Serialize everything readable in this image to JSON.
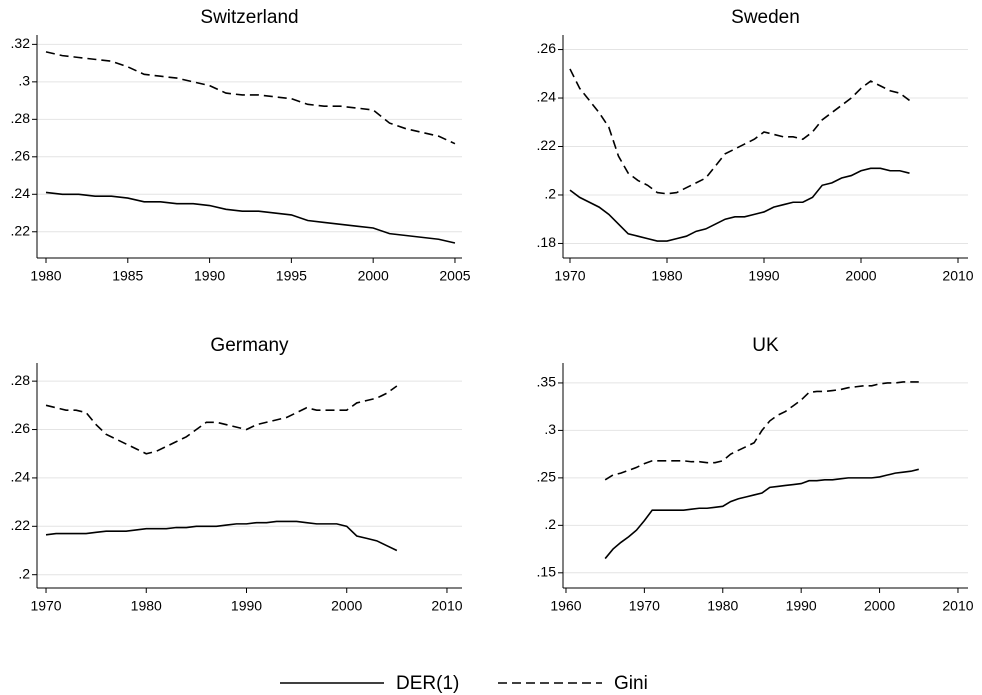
{
  "legend": {
    "entries": [
      {
        "name": "DER(1)",
        "dash": "solid"
      },
      {
        "name": "Gini",
        "dash": "dashed"
      }
    ]
  },
  "chart_data": [
    {
      "type": "line",
      "title": "Switzerland",
      "grid": true,
      "x": [
        1980,
        1981,
        1982,
        1983,
        1984,
        1985,
        1986,
        1987,
        1988,
        1989,
        1990,
        1991,
        1992,
        1993,
        1994,
        1995,
        1996,
        1997,
        1998,
        1999,
        2000,
        2001,
        2002,
        2003,
        2004,
        2005
      ],
      "series": [
        {
          "color": "#000000",
          "dash": "solid",
          "values": [
            0.241,
            0.24,
            0.24,
            0.239,
            0.239,
            0.238,
            0.236,
            0.236,
            0.235,
            0.235,
            0.234,
            0.232,
            0.231,
            0.231,
            0.23,
            0.229,
            0.226,
            0.225,
            0.224,
            0.223,
            0.222,
            0.219,
            0.218,
            0.217,
            0.216,
            0.214
          ]
        },
        {
          "color": "#000000",
          "dash": "dashed",
          "values": [
            0.316,
            0.314,
            0.313,
            0.312,
            0.311,
            0.308,
            0.304,
            0.303,
            0.302,
            0.3,
            0.298,
            0.294,
            0.293,
            0.293,
            0.292,
            0.291,
            0.288,
            0.287,
            0.287,
            0.286,
            0.285,
            0.278,
            0.275,
            0.273,
            0.271,
            0.267
          ]
        }
      ],
      "xlim": [
        1979.45,
        2005.43
      ],
      "xticks": [
        1980,
        1985,
        1990,
        1995,
        2000,
        2005
      ],
      "ylim": [
        0.206,
        0.325
      ],
      "yticks": [
        {
          "value": 0.22,
          "label": ".22"
        },
        {
          "value": 0.24,
          "label": ".24"
        },
        {
          "value": 0.26,
          "label": ".26"
        },
        {
          "value": 0.28,
          "label": ".28"
        },
        {
          "value": 0.3,
          "label": ".3"
        },
        {
          "value": 0.32,
          "label": ".32"
        }
      ]
    },
    {
      "type": "line",
      "title": "Sweden",
      "grid": true,
      "x": [
        1970,
        1971,
        1972,
        1973,
        1974,
        1975,
        1976,
        1977,
        1978,
        1979,
        1980,
        1981,
        1982,
        1983,
        1984,
        1985,
        1986,
        1987,
        1988,
        1989,
        1990,
        1991,
        1992,
        1993,
        1994,
        1995,
        1996,
        1997,
        1998,
        1999,
        2000,
        2001,
        2002,
        2003,
        2004,
        2005
      ],
      "series": [
        {
          "color": "#000000",
          "dash": "solid",
          "values": [
            0.202,
            0.199,
            0.197,
            0.195,
            0.192,
            0.188,
            0.184,
            0.183,
            0.182,
            0.181,
            0.181,
            0.182,
            0.183,
            0.185,
            0.186,
            0.188,
            0.19,
            0.191,
            0.191,
            0.192,
            0.193,
            0.195,
            0.196,
            0.197,
            0.197,
            0.199,
            0.204,
            0.205,
            0.207,
            0.208,
            0.21,
            0.211,
            0.211,
            0.21,
            0.21,
            0.209
          ]
        },
        {
          "color": "#000000",
          "dash": "dashed",
          "values": [
            0.252,
            0.244,
            0.239,
            0.234,
            0.228,
            0.216,
            0.209,
            0.206,
            0.204,
            0.201,
            0.2005,
            0.201,
            0.203,
            0.205,
            0.207,
            0.212,
            0.217,
            0.219,
            0.221,
            0.223,
            0.226,
            0.225,
            0.224,
            0.224,
            0.223,
            0.226,
            0.231,
            0.234,
            0.237,
            0.24,
            0.244,
            0.247,
            0.245,
            0.243,
            0.242,
            0.239
          ]
        }
      ],
      "xlim": [
        1969.28,
        2011.03
      ],
      "xticks": [
        1970,
        1980,
        1990,
        2000,
        2010
      ],
      "ylim": [
        0.174,
        0.266
      ],
      "yticks": [
        {
          "value": 0.18,
          "label": ".18"
        },
        {
          "value": 0.2,
          "label": ".2"
        },
        {
          "value": 0.22,
          "label": ".22"
        },
        {
          "value": 0.24,
          "label": ".24"
        },
        {
          "value": 0.26,
          "label": ".26"
        }
      ]
    },
    {
      "type": "line",
      "title": "Germany",
      "grid": true,
      "x": [
        1970,
        1971,
        1972,
        1973,
        1974,
        1975,
        1976,
        1977,
        1978,
        1979,
        1980,
        1981,
        1982,
        1983,
        1984,
        1985,
        1986,
        1987,
        1988,
        1989,
        1990,
        1991,
        1992,
        1993,
        1994,
        1995,
        1996,
        1997,
        1998,
        1999,
        2000,
        2001,
        2002,
        2003,
        2004,
        2005
      ],
      "series": [
        {
          "color": "#000000",
          "dash": "solid",
          "values": [
            0.2165,
            0.217,
            0.217,
            0.217,
            0.217,
            0.2175,
            0.218,
            0.218,
            0.218,
            0.2185,
            0.219,
            0.219,
            0.219,
            0.2195,
            0.2195,
            0.22,
            0.22,
            0.22,
            0.2205,
            0.221,
            0.221,
            0.2215,
            0.2215,
            0.222,
            0.222,
            0.222,
            0.2215,
            0.221,
            0.221,
            0.221,
            0.22,
            0.216,
            0.215,
            0.214,
            0.212,
            0.21
          ]
        },
        {
          "color": "#000000",
          "dash": "dashed",
          "values": [
            0.27,
            0.269,
            0.268,
            0.268,
            0.267,
            0.262,
            0.258,
            0.256,
            0.254,
            0.252,
            0.25,
            0.251,
            0.253,
            0.255,
            0.257,
            0.26,
            0.263,
            0.263,
            0.262,
            0.261,
            0.26,
            0.262,
            0.263,
            0.264,
            0.265,
            0.267,
            0.269,
            0.268,
            0.268,
            0.268,
            0.268,
            0.271,
            0.272,
            0.273,
            0.275,
            0.278
          ]
        }
      ],
      "xlim": [
        1969.1,
        2011.5
      ],
      "xticks": [
        1970,
        1980,
        1990,
        2000,
        2010
      ],
      "ylim": [
        0.1945,
        0.2875
      ],
      "yticks": [
        {
          "value": 0.2,
          "label": ".2"
        },
        {
          "value": 0.22,
          "label": ".22"
        },
        {
          "value": 0.24,
          "label": ".24"
        },
        {
          "value": 0.26,
          "label": ".26"
        },
        {
          "value": 0.28,
          "label": ".28"
        }
      ]
    },
    {
      "type": "line",
      "title": "UK",
      "grid": true,
      "x": [
        1965,
        1966,
        1967,
        1968,
        1969,
        1970,
        1971,
        1972,
        1973,
        1974,
        1975,
        1976,
        1977,
        1978,
        1979,
        1980,
        1981,
        1982,
        1983,
        1984,
        1985,
        1986,
        1987,
        1988,
        1989,
        1990,
        1991,
        1992,
        1993,
        1994,
        1995,
        1996,
        1997,
        1998,
        1999,
        2000,
        2001,
        2002,
        2003,
        2004,
        2005
      ],
      "series": [
        {
          "color": "#000000",
          "dash": "solid",
          "values": [
            0.165,
            0.175,
            0.182,
            0.188,
            0.195,
            0.205,
            0.216,
            0.216,
            0.216,
            0.216,
            0.216,
            0.217,
            0.218,
            0.218,
            0.219,
            0.22,
            0.225,
            0.228,
            0.23,
            0.232,
            0.234,
            0.24,
            0.241,
            0.242,
            0.243,
            0.244,
            0.247,
            0.247,
            0.248,
            0.248,
            0.249,
            0.25,
            0.25,
            0.25,
            0.25,
            0.251,
            0.253,
            0.255,
            0.256,
            0.257,
            0.259
          ]
        },
        {
          "color": "#000000",
          "dash": "dashed",
          "values": [
            0.248,
            0.253,
            0.255,
            0.258,
            0.261,
            0.265,
            0.268,
            0.268,
            0.268,
            0.268,
            0.268,
            0.267,
            0.267,
            0.266,
            0.266,
            0.268,
            0.275,
            0.279,
            0.283,
            0.287,
            0.3,
            0.31,
            0.316,
            0.32,
            0.326,
            0.332,
            0.34,
            0.341,
            0.341,
            0.342,
            0.343,
            0.345,
            0.346,
            0.347,
            0.347,
            0.349,
            0.35,
            0.35,
            0.351,
            0.351,
            0.351
          ]
        }
      ],
      "xlim": [
        1959.62,
        2011.28
      ],
      "xticks": [
        1960,
        1970,
        1980,
        1990,
        2000,
        2010
      ],
      "ylim": [
        0.134,
        0.371
      ],
      "yticks": [
        {
          "value": 0.15,
          "label": ".15"
        },
        {
          "value": 0.2,
          "label": ".2"
        },
        {
          "value": 0.25,
          "label": ".25"
        },
        {
          "value": 0.3,
          "label": ".3"
        },
        {
          "value": 0.35,
          "label": ".35"
        }
      ]
    }
  ]
}
